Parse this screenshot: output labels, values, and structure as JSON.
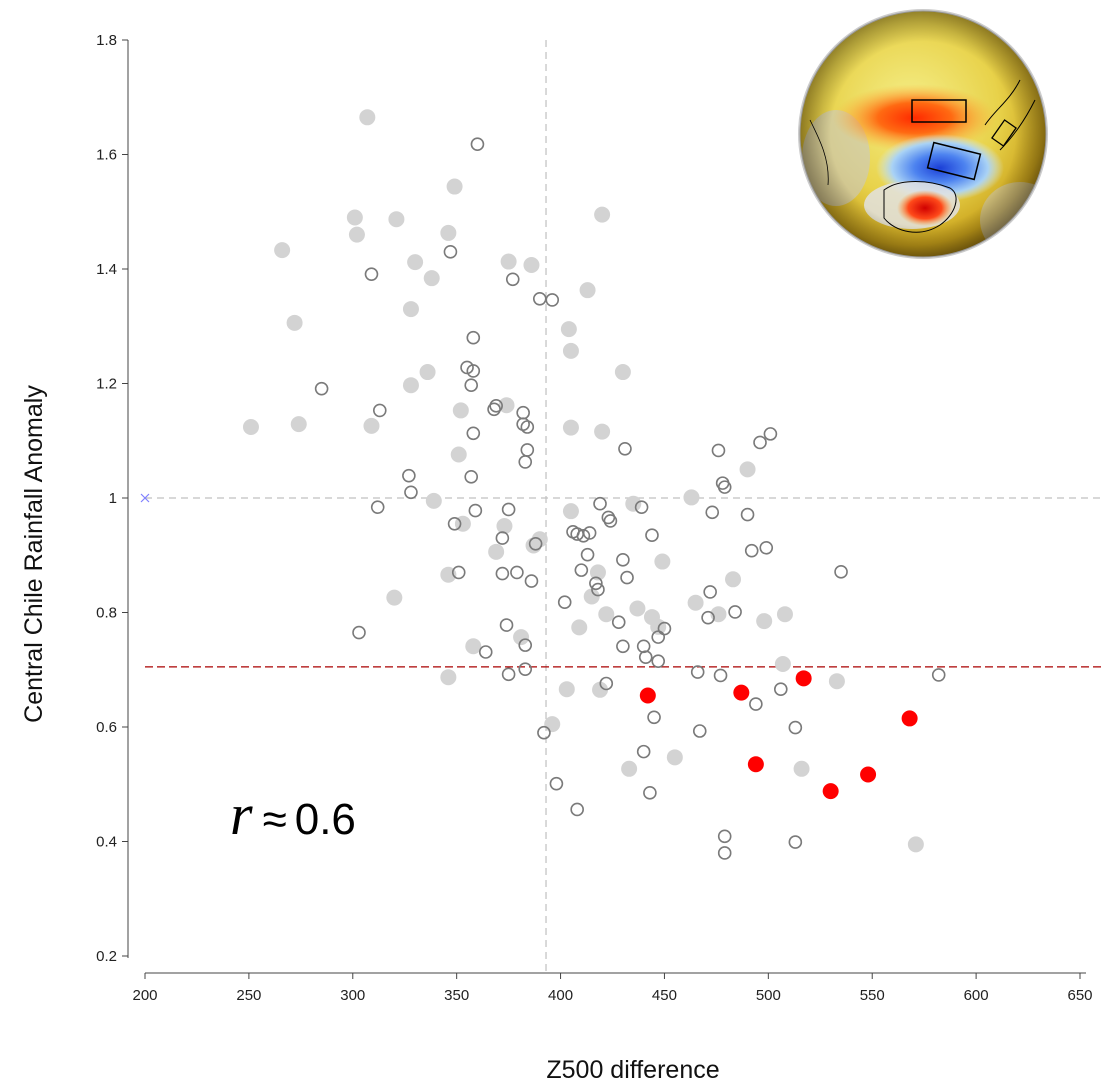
{
  "chart_data": {
    "type": "scatter",
    "xlabel": "Z500 difference",
    "ylabel": "Central Chile Rainfall Anomaly",
    "xlim": [
      200,
      650
    ],
    "ylim": [
      0.2,
      1.8
    ],
    "xticks": [
      200,
      250,
      300,
      350,
      400,
      450,
      500,
      550,
      600,
      650
    ],
    "yticks": [
      0.2,
      0.4,
      0.6,
      0.8,
      1,
      1.2,
      1.4,
      1.6,
      1.8
    ],
    "ytick_labels": [
      "0.2",
      "0.4",
      "0.6",
      "0.8",
      "1",
      "1.2",
      "1.4",
      "1.6",
      "1.8"
    ],
    "grid": false,
    "reference_lines": {
      "vertical_x": 393,
      "horizontal_y": 1.0,
      "threshold_y": 0.705
    },
    "marker_x": {
      "x": 200,
      "y": 1.0
    },
    "annotation": {
      "symbol": "r",
      "relation": "≈",
      "value": "0.6"
    },
    "colors": {
      "filled": "#d3d3d3",
      "open": "#7a7a7a",
      "highlight": "#ff0000",
      "marker_x": "#8080ff",
      "threshold": "#aa0000",
      "dashed": "#c0c0c0"
    },
    "series": [
      {
        "style": "filled-gray",
        "points": [
          [
            251,
            1.124
          ],
          [
            266,
            1.433
          ],
          [
            272,
            1.306
          ],
          [
            274,
            1.129
          ],
          [
            301,
            1.49
          ],
          [
            302,
            1.46
          ],
          [
            307,
            1.665
          ],
          [
            309,
            1.126
          ],
          [
            320,
            0.826
          ],
          [
            321,
            1.487
          ],
          [
            328,
            1.33
          ],
          [
            328,
            1.197
          ],
          [
            330,
            1.412
          ],
          [
            336,
            1.22
          ],
          [
            338,
            1.384
          ],
          [
            339,
            0.995
          ],
          [
            346,
            1.463
          ],
          [
            346,
            0.866
          ],
          [
            346,
            0.687
          ],
          [
            349,
            1.544
          ],
          [
            351,
            1.076
          ],
          [
            352,
            1.153
          ],
          [
            353,
            0.955
          ],
          [
            358,
            0.741
          ],
          [
            375,
            1.413
          ],
          [
            374,
            1.162
          ],
          [
            373,
            0.951
          ],
          [
            369,
            0.906
          ],
          [
            381,
            0.757
          ],
          [
            386,
            1.407
          ],
          [
            387,
            0.917
          ],
          [
            390,
            0.928
          ],
          [
            396,
            0.605
          ],
          [
            403,
            0.666
          ],
          [
            404,
            1.295
          ],
          [
            405,
            1.257
          ],
          [
            405,
            1.123
          ],
          [
            405,
            0.977
          ],
          [
            409,
            0.774
          ],
          [
            413,
            1.363
          ],
          [
            415,
            0.828
          ],
          [
            418,
            0.87
          ],
          [
            419,
            0.665
          ],
          [
            420,
            1.495
          ],
          [
            420,
            1.116
          ],
          [
            422,
            0.797
          ],
          [
            430,
            1.22
          ],
          [
            433,
            0.527
          ],
          [
            435,
            0.99
          ],
          [
            437,
            0.807
          ],
          [
            444,
            0.792
          ],
          [
            447,
            0.775
          ],
          [
            449,
            0.889
          ],
          [
            455,
            0.547
          ],
          [
            463,
            1.001
          ],
          [
            465,
            0.817
          ],
          [
            476,
            0.797
          ],
          [
            483,
            0.858
          ],
          [
            490,
            1.05
          ],
          [
            498,
            0.785
          ],
          [
            507,
            0.71
          ],
          [
            508,
            0.797
          ],
          [
            516,
            0.527
          ],
          [
            533,
            0.68
          ],
          [
            571,
            0.395
          ]
        ]
      },
      {
        "style": "open-gray",
        "points": [
          [
            285,
            1.191
          ],
          [
            303,
            0.765
          ],
          [
            309,
            1.391
          ],
          [
            312,
            0.984
          ],
          [
            313,
            1.153
          ],
          [
            327,
            1.039
          ],
          [
            328,
            1.01
          ],
          [
            347,
            1.43
          ],
          [
            349,
            0.955
          ],
          [
            351,
            0.87
          ],
          [
            355,
            1.228
          ],
          [
            357,
            1.197
          ],
          [
            358,
            1.28
          ],
          [
            358,
            1.222
          ],
          [
            358,
            1.113
          ],
          [
            357,
            1.037
          ],
          [
            359,
            0.978
          ],
          [
            360,
            1.618
          ],
          [
            364,
            0.731
          ],
          [
            369,
            1.161
          ],
          [
            368,
            1.155
          ],
          [
            372,
            0.868
          ],
          [
            375,
            0.98
          ],
          [
            372,
            0.93
          ],
          [
            374,
            0.778
          ],
          [
            375,
            0.692
          ],
          [
            377,
            1.382
          ],
          [
            379,
            0.87
          ],
          [
            382,
            1.149
          ],
          [
            382,
            1.129
          ],
          [
            383,
            1.063
          ],
          [
            383,
            0.743
          ],
          [
            383,
            0.701
          ],
          [
            384,
            1.124
          ],
          [
            384,
            1.084
          ],
          [
            386,
            0.855
          ],
          [
            388,
            0.92
          ],
          [
            390,
            1.348
          ],
          [
            392,
            0.59
          ],
          [
            396,
            1.346
          ],
          [
            398,
            0.501
          ],
          [
            402,
            0.818
          ],
          [
            406,
            0.941
          ],
          [
            408,
            0.937
          ],
          [
            408,
            0.456
          ],
          [
            410,
            0.874
          ],
          [
            411,
            0.934
          ],
          [
            413,
            0.901
          ],
          [
            414,
            0.939
          ],
          [
            417,
            0.851
          ],
          [
            418,
            0.84
          ],
          [
            419,
            0.99
          ],
          [
            422,
            0.676
          ],
          [
            423,
            0.966
          ],
          [
            424,
            0.96
          ],
          [
            428,
            0.783
          ],
          [
            430,
            0.741
          ],
          [
            430,
            0.892
          ],
          [
            431,
            1.086
          ],
          [
            432,
            0.861
          ],
          [
            439,
            0.984
          ],
          [
            440,
            0.741
          ],
          [
            440,
            0.557
          ],
          [
            441,
            0.722
          ],
          [
            443,
            0.485
          ],
          [
            444,
            0.935
          ],
          [
            445,
            0.617
          ],
          [
            447,
            0.715
          ],
          [
            447,
            0.757
          ],
          [
            450,
            0.772
          ],
          [
            466,
            0.696
          ],
          [
            467,
            0.593
          ],
          [
            471,
            0.791
          ],
          [
            472,
            0.836
          ],
          [
            473,
            0.975
          ],
          [
            476,
            1.083
          ],
          [
            477,
            0.69
          ],
          [
            478,
            1.026
          ],
          [
            479,
            1.019
          ],
          [
            479,
            0.409
          ],
          [
            479,
            0.38
          ],
          [
            484,
            0.801
          ],
          [
            490,
            0.971
          ],
          [
            492,
            0.908
          ],
          [
            494,
            0.64
          ],
          [
            496,
            1.097
          ],
          [
            499,
            0.913
          ],
          [
            501,
            1.112
          ],
          [
            506,
            0.666
          ],
          [
            513,
            0.599
          ],
          [
            513,
            0.399
          ],
          [
            535,
            0.871
          ],
          [
            582,
            0.691
          ]
        ]
      },
      {
        "style": "filled-red",
        "points": [
          [
            442,
            0.655
          ],
          [
            487,
            0.66
          ],
          [
            494,
            0.535
          ],
          [
            517,
            0.685
          ],
          [
            530,
            0.488
          ],
          [
            548,
            0.517
          ],
          [
            568,
            0.615
          ]
        ]
      }
    ]
  }
}
